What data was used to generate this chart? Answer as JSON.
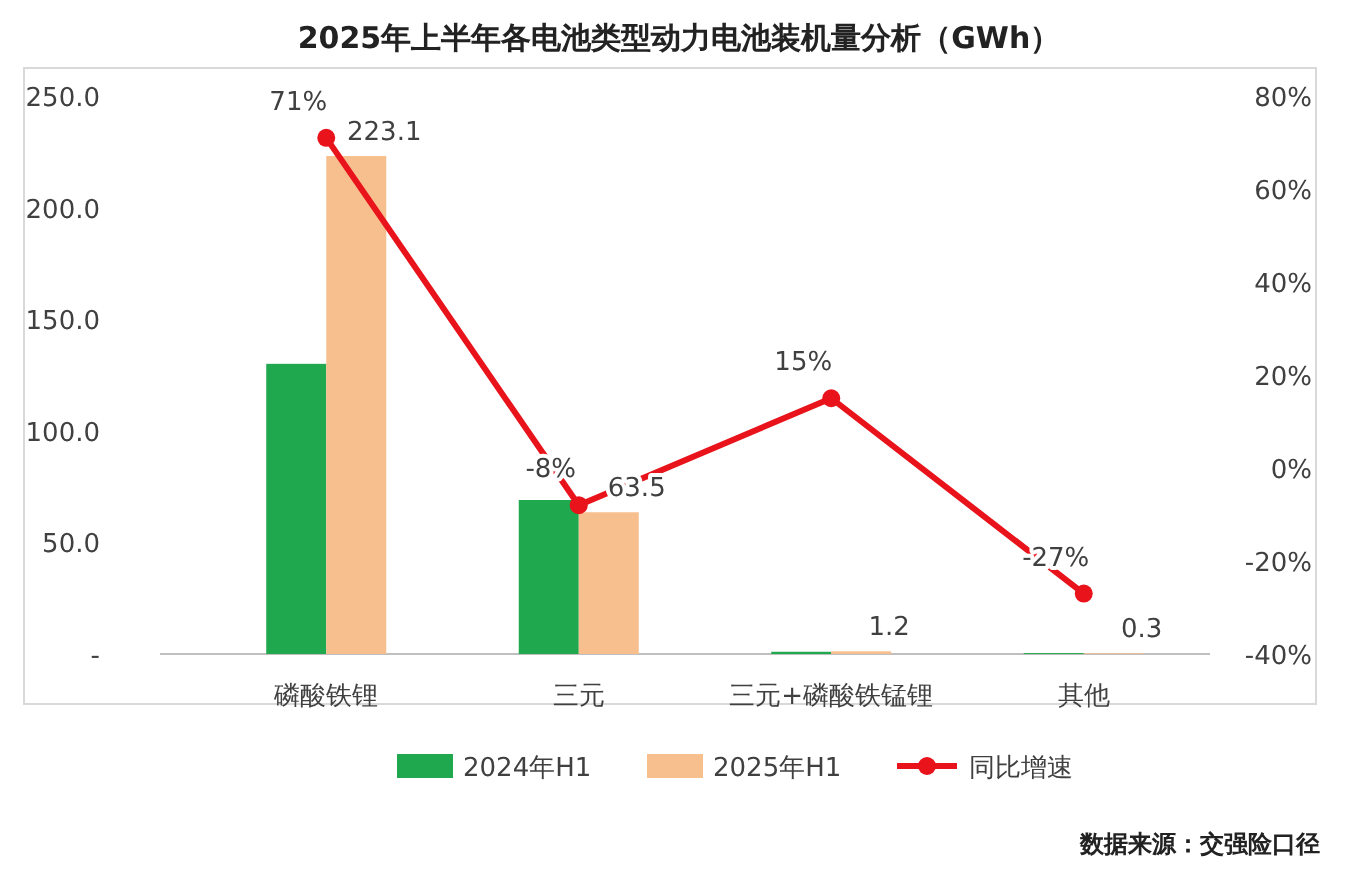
{
  "chart_data": {
    "type": "bar",
    "title": "2025年上半年各电池类型动力电池装机量分析（GWh）",
    "categories": [
      "磷酸铁锂",
      "三元",
      "三元+磷酸铁锰锂",
      "其他"
    ],
    "series": [
      {
        "name": "2024年H1",
        "color": "#1fa84d",
        "values": [
          130,
          69,
          1.0,
          0.4
        ]
      },
      {
        "name": "2025年H1",
        "color": "#f8bf8e",
        "values": [
          223.1,
          63.5,
          1.2,
          0.3
        ],
        "value_labels": [
          "223.1",
          "63.5",
          "1.2",
          "0.3"
        ]
      },
      {
        "name": "同比增速",
        "type": "line",
        "axis": "y2",
        "color": "#e8131b",
        "marker": "circle",
        "values": [
          71,
          -8,
          15,
          -27
        ],
        "value_labels": [
          "71%",
          "-8%",
          "15%",
          "-27%"
        ]
      }
    ],
    "ylim": [
      0,
      250
    ],
    "yticks": [
      {
        "value": 0,
        "label": "-"
      },
      {
        "value": 50,
        "label": "50.0"
      },
      {
        "value": 100,
        "label": "100.0"
      },
      {
        "value": 150,
        "label": "150.0"
      },
      {
        "value": 200,
        "label": "200.0"
      },
      {
        "value": 250,
        "label": "250.0"
      }
    ],
    "y2lim": [
      -40,
      80
    ],
    "y2ticks": [
      {
        "value": -40,
        "label": "-40%"
      },
      {
        "value": -20,
        "label": "-20%"
      },
      {
        "value": 0,
        "label": "0%"
      },
      {
        "value": 20,
        "label": "20%"
      },
      {
        "value": 40,
        "label": "40%"
      },
      {
        "value": 60,
        "label": "60%"
      },
      {
        "value": 80,
        "label": "80%"
      }
    ],
    "legend": "bottom",
    "annotations": [
      "数据来源：交强险口径"
    ]
  }
}
